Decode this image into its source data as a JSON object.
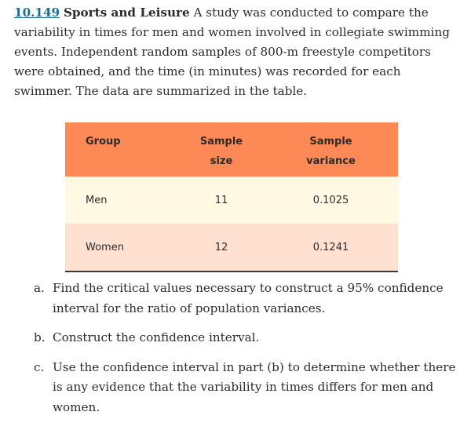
{
  "exercise": {
    "number": "10.149",
    "title": "Sports and Leisure",
    "body": "A study was conducted to compare the variability in times for men and women involved in collegiate swimming events. Independent random samples of 800-m freestyle competitors were obtained, and the time (in minutes) was recorded for each swimmer. The data are summarized in the table."
  },
  "table": {
    "headers": [
      "Group",
      "Sample size",
      "Sample variance"
    ],
    "rows": [
      [
        "Men",
        "11",
        "0.1025"
      ],
      [
        "Women",
        "12",
        "0.1241"
      ]
    ]
  },
  "questions": [
    {
      "letter": "a.",
      "text": "Find the critical values necessary to construct a 95% confidence interval for the ratio of population variances."
    },
    {
      "letter": "b.",
      "text": "Construct the confidence interval."
    },
    {
      "letter": "c.",
      "text": "Use the confidence interval in part (b) to determine whether there is any evidence that the variability in times differs for men and women."
    }
  ]
}
